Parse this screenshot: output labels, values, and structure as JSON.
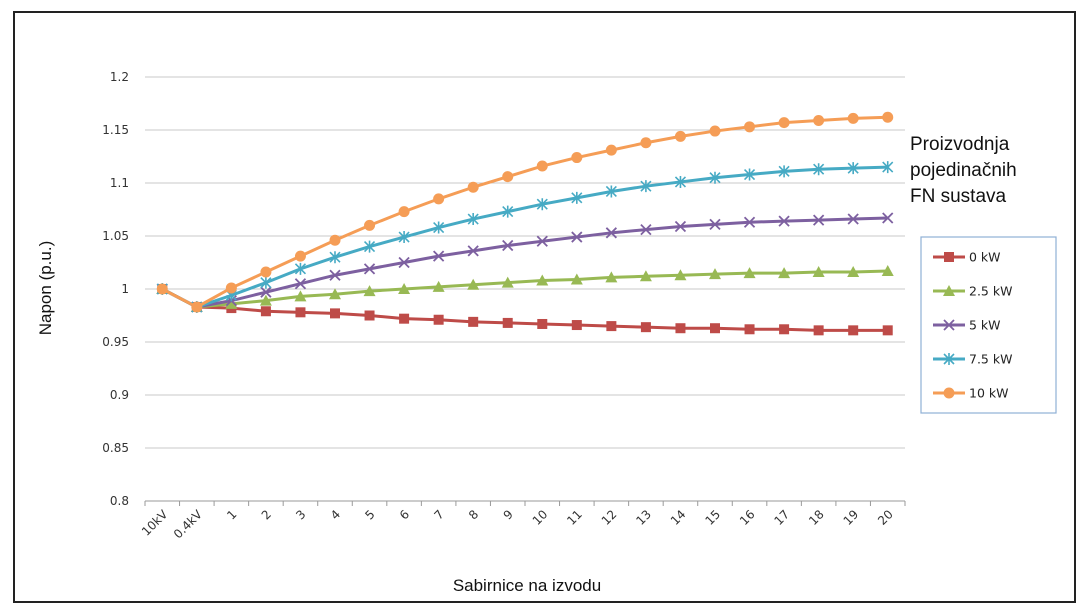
{
  "chart_data": {
    "type": "line",
    "title": "",
    "xlabel": "Sabirnice na izvodu",
    "ylabel": "Napon (p.u.)",
    "ylim": [
      0.8,
      1.2
    ],
    "yticks": [
      "0.8",
      "0.85",
      "0.9",
      "0.95",
      "1",
      "1.05",
      "1.1",
      "1.15",
      "1.2"
    ],
    "categories": [
      "10kV",
      "0.4kV",
      "1",
      "2",
      "3",
      "4",
      "5",
      "6",
      "7",
      "8",
      "9",
      "10",
      "11",
      "12",
      "13",
      "14",
      "15",
      "16",
      "17",
      "18",
      "19",
      "20"
    ],
    "grid": "horizontal",
    "legend_position": "right",
    "annotation_lines": [
      "Proizvodnja",
      "pojedinačnih",
      "FN sustava"
    ],
    "series": [
      {
        "name": "0 kW",
        "color": "#be4b48",
        "marker": "square",
        "values": [
          1.0,
          0.983,
          0.982,
          0.979,
          0.978,
          0.977,
          0.975,
          0.972,
          0.971,
          0.969,
          0.968,
          0.967,
          0.966,
          0.965,
          0.964,
          0.963,
          0.963,
          0.962,
          0.962,
          0.961,
          0.961,
          0.961
        ]
      },
      {
        "name": "2.5 kW",
        "color": "#98b954",
        "marker": "triangle",
        "values": [
          1.0,
          0.983,
          0.986,
          0.989,
          0.993,
          0.995,
          0.998,
          1.0,
          1.002,
          1.004,
          1.006,
          1.008,
          1.009,
          1.011,
          1.012,
          1.013,
          1.014,
          1.015,
          1.015,
          1.016,
          1.016,
          1.017
        ]
      },
      {
        "name": "5 kW",
        "color": "#7d60a0",
        "marker": "x",
        "values": [
          1.0,
          0.983,
          0.989,
          0.997,
          1.005,
          1.013,
          1.019,
          1.025,
          1.031,
          1.036,
          1.041,
          1.045,
          1.049,
          1.053,
          1.056,
          1.059,
          1.061,
          1.063,
          1.064,
          1.065,
          1.066,
          1.067
        ]
      },
      {
        "name": "7.5 kW",
        "color": "#46aac4",
        "marker": "star",
        "values": [
          1.0,
          0.983,
          0.994,
          1.006,
          1.019,
          1.03,
          1.04,
          1.049,
          1.058,
          1.066,
          1.073,
          1.08,
          1.086,
          1.092,
          1.097,
          1.101,
          1.105,
          1.108,
          1.111,
          1.113,
          1.114,
          1.115
        ]
      },
      {
        "name": "10 kW",
        "color": "#f59d56",
        "marker": "circle",
        "values": [
          1.0,
          0.983,
          1.001,
          1.016,
          1.031,
          1.046,
          1.06,
          1.073,
          1.085,
          1.096,
          1.106,
          1.116,
          1.124,
          1.131,
          1.138,
          1.144,
          1.149,
          1.153,
          1.157,
          1.159,
          1.161,
          1.162
        ]
      }
    ]
  }
}
